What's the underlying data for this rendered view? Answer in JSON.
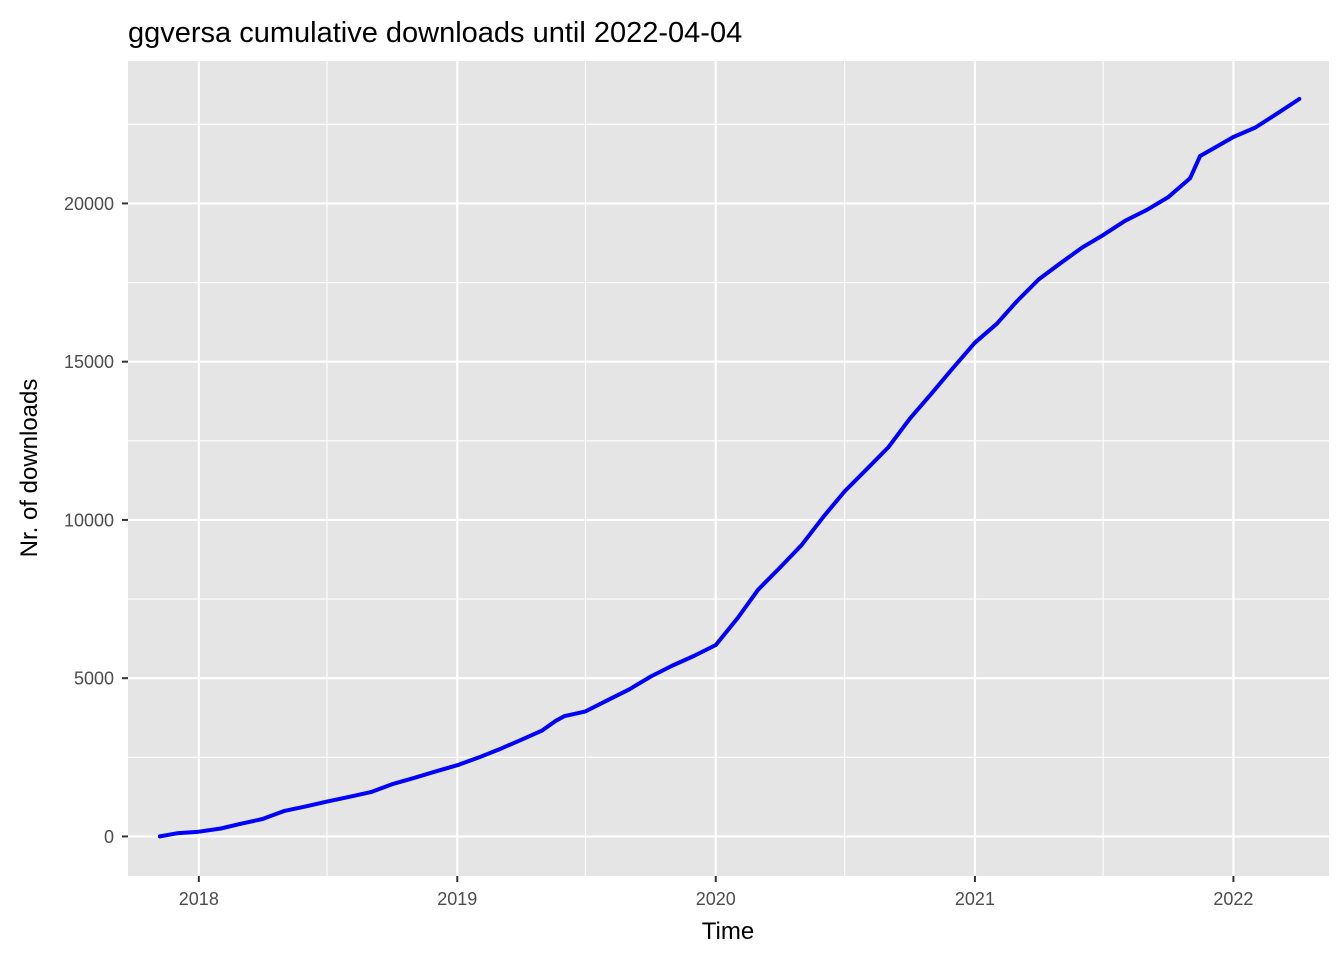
{
  "chart_data": {
    "type": "line",
    "title": "ggversa cumulative downloads until 2022-04-04",
    "xlabel": "Time",
    "ylabel": "Nr. of downloads",
    "x_tick_labels": [
      "2018",
      "2019",
      "2020",
      "2021",
      "2022"
    ],
    "y_tick_labels": [
      "0",
      "5000",
      "10000",
      "15000",
      "20000"
    ],
    "xlim": [
      "2017-09-23",
      "2022-05-16"
    ],
    "ylim": [
      -1250,
      24500
    ],
    "grid": true,
    "legend": "none",
    "line_color": "#0000ff",
    "panel_color": "#e5e5e5",
    "grid_color": "#ffffff",
    "series": [
      {
        "x": [
          "2017-11-07",
          "2017-12-01",
          "2018-01-01",
          "2018-02-01",
          "2018-03-01",
          "2018-04-01",
          "2018-05-01",
          "2018-06-01",
          "2018-07-01",
          "2018-08-01",
          "2018-09-01",
          "2018-10-01",
          "2018-11-01",
          "2018-12-01",
          "2019-01-01",
          "2019-02-01",
          "2019-03-01",
          "2019-04-01",
          "2019-05-01",
          "2019-05-20",
          "2019-06-01",
          "2019-07-01",
          "2019-08-01",
          "2019-09-01",
          "2019-10-01",
          "2019-11-01",
          "2019-12-01",
          "2020-01-01",
          "2020-02-01",
          "2020-03-01",
          "2020-04-01",
          "2020-05-01",
          "2020-06-01",
          "2020-07-01",
          "2020-08-01",
          "2020-09-01",
          "2020-10-01",
          "2020-11-01",
          "2020-12-01",
          "2021-01-01",
          "2021-02-01",
          "2021-03-01",
          "2021-04-01",
          "2021-05-01",
          "2021-06-01",
          "2021-07-01",
          "2021-08-01",
          "2021-09-01",
          "2021-10-01",
          "2021-11-01",
          "2021-11-15",
          "2021-12-01",
          "2022-01-01",
          "2022-02-01",
          "2022-03-01",
          "2022-04-04"
        ],
        "y": [
          0,
          100,
          150,
          250,
          400,
          550,
          800,
          950,
          1100,
          1250,
          1400,
          1650,
          1850,
          2050,
          2250,
          2500,
          2750,
          3050,
          3350,
          3650,
          3800,
          3950,
          4300,
          4650,
          5050,
          5400,
          5700,
          6050,
          6900,
          7800,
          8500,
          9200,
          10100,
          10900,
          11600,
          12300,
          13200,
          14000,
          14800,
          15600,
          16200,
          16900,
          17600,
          18100,
          18600,
          19000,
          19450,
          19800,
          20200,
          20800,
          21500,
          21700,
          22100,
          22400,
          22800,
          23300
        ]
      }
    ]
  }
}
